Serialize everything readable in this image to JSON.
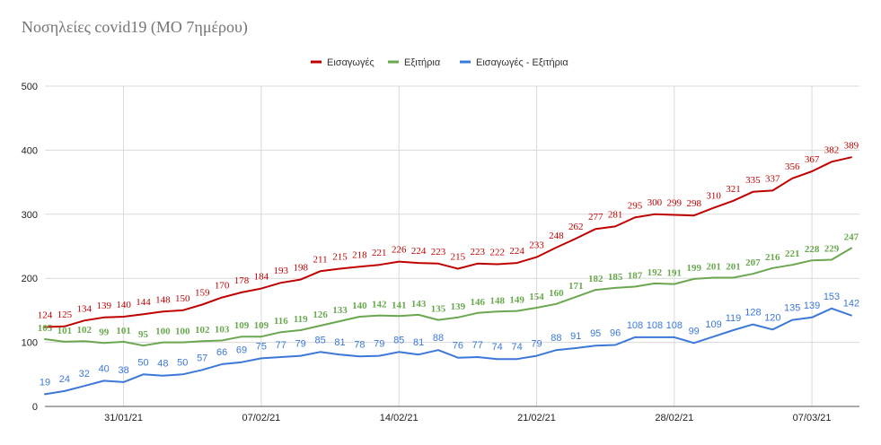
{
  "chart_data": {
    "type": "line",
    "title": "Νοσηλείες covid19 (ΜΟ 7ημέρου)",
    "xlabel": "",
    "ylabel": "",
    "ylim": [
      0,
      500
    ],
    "yticks": [
      0,
      100,
      200,
      300,
      400,
      500
    ],
    "grid": true,
    "legend_position": "top",
    "x_tick_labels": [
      "31/01/21",
      "07/02/21",
      "14/02/21",
      "21/02/21",
      "28/02/21",
      "07/03/21"
    ],
    "x_tick_indices": [
      4,
      11,
      18,
      25,
      32,
      39
    ],
    "series": [
      {
        "name": "Εισαγωγές",
        "color": "#c00000",
        "values": [
          124,
          125,
          134,
          139,
          140,
          144,
          148,
          150,
          159,
          170,
          178,
          184,
          193,
          198,
          211,
          215,
          218,
          221,
          226,
          224,
          223,
          215,
          223,
          222,
          224,
          233,
          248,
          262,
          277,
          281,
          295,
          300,
          299,
          298,
          310,
          321,
          335,
          337,
          356,
          367,
          382,
          389
        ]
      },
      {
        "name": "Εξιτήρια",
        "color": "#6aa84f",
        "values": [
          105,
          101,
          102,
          99,
          101,
          95,
          100,
          100,
          102,
          103,
          109,
          109,
          116,
          119,
          126,
          133,
          140,
          142,
          141,
          143,
          135,
          139,
          146,
          148,
          149,
          154,
          160,
          171,
          182,
          185,
          187,
          192,
          191,
          199,
          201,
          201,
          207,
          216,
          221,
          228,
          229,
          247
        ]
      },
      {
        "name": "Εισαγωγές - Εξιτήρια",
        "color": "#3c78d8",
        "values": [
          19,
          24,
          32,
          40,
          38,
          50,
          48,
          50,
          57,
          66,
          69,
          75,
          77,
          79,
          85,
          81,
          78,
          79,
          85,
          81,
          88,
          76,
          77,
          74,
          74,
          79,
          88,
          91,
          95,
          96,
          108,
          108,
          108,
          99,
          109,
          119,
          128,
          120,
          135,
          139,
          153,
          142
        ]
      }
    ]
  }
}
